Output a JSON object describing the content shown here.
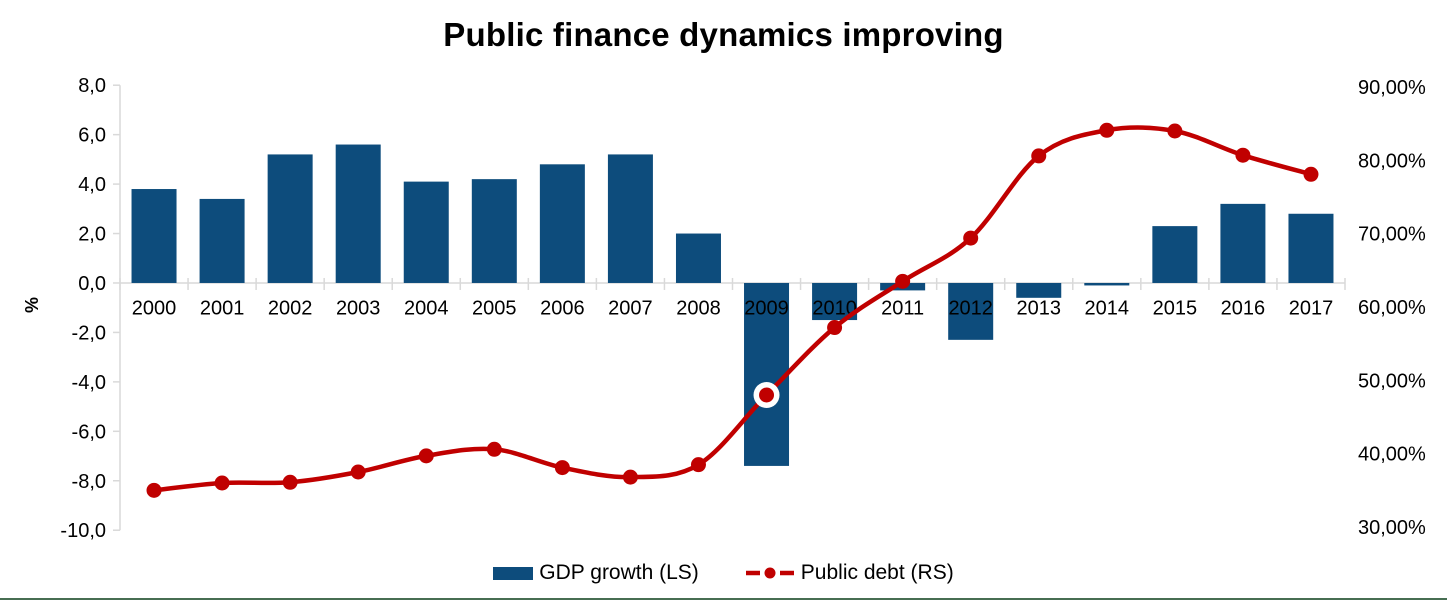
{
  "title": "Public finance dynamics improving",
  "legend": {
    "bar_label": "GDP growth (LS)",
    "line_label": "Public debt (RS)"
  },
  "colors": {
    "bar": "#0d4c7c",
    "line": "#c00000",
    "axis": "#d9d9d9",
    "text": "#000000",
    "footer_rule": "#476e52",
    "highlight_marker_ring": "#ffffff"
  },
  "chart_data": {
    "type": "combo",
    "title": "Public finance dynamics improving",
    "categories": [
      "2000",
      "2001",
      "2002",
      "2003",
      "2004",
      "2005",
      "2006",
      "2007",
      "2008",
      "2009",
      "2010",
      "2011",
      "2012",
      "2013",
      "2014",
      "2015",
      "2016",
      "2017"
    ],
    "series": [
      {
        "name": "GDP growth (LS)",
        "type": "bar",
        "axis": "left",
        "color": "#0d4c7c",
        "values": [
          3.8,
          3.4,
          5.2,
          5.6,
          4.1,
          4.2,
          4.8,
          5.2,
          2.0,
          -7.4,
          -1.5,
          -0.3,
          -2.3,
          -0.6,
          -0.1,
          2.3,
          3.2,
          2.8
        ]
      },
      {
        "name": "Public debt (RS)",
        "type": "line",
        "axis": "right",
        "color": "#c00000",
        "marker": "circle",
        "highlight_index": 9,
        "values": [
          35.0,
          36.0,
          36.1,
          37.5,
          39.7,
          40.6,
          38.1,
          36.8,
          38.5,
          48.0,
          57.2,
          63.5,
          69.4,
          80.6,
          84.1,
          84.0,
          80.7,
          78.1
        ]
      }
    ],
    "left_axis": {
      "label": "%",
      "min": -10,
      "max": 8,
      "tick_values": [
        8,
        6,
        4,
        2,
        0,
        -2,
        -4,
        -6,
        -8,
        -10
      ],
      "tick_labels": [
        "8,0",
        "6,0",
        "4,0",
        "2,0",
        "0,0",
        "-2,0",
        "-4,0",
        "-6,0",
        "-8,0",
        "-10,0"
      ]
    },
    "right_axis": {
      "min": 30,
      "max": 90,
      "tick_values": [
        90,
        80,
        70,
        60,
        50,
        40,
        30
      ],
      "tick_labels": [
        "90,00%",
        "80,00%",
        "70,00%",
        "60,00%",
        "50,00%",
        "40,00%",
        "30,00%"
      ]
    },
    "grid": false,
    "legend_position": "bottom"
  }
}
